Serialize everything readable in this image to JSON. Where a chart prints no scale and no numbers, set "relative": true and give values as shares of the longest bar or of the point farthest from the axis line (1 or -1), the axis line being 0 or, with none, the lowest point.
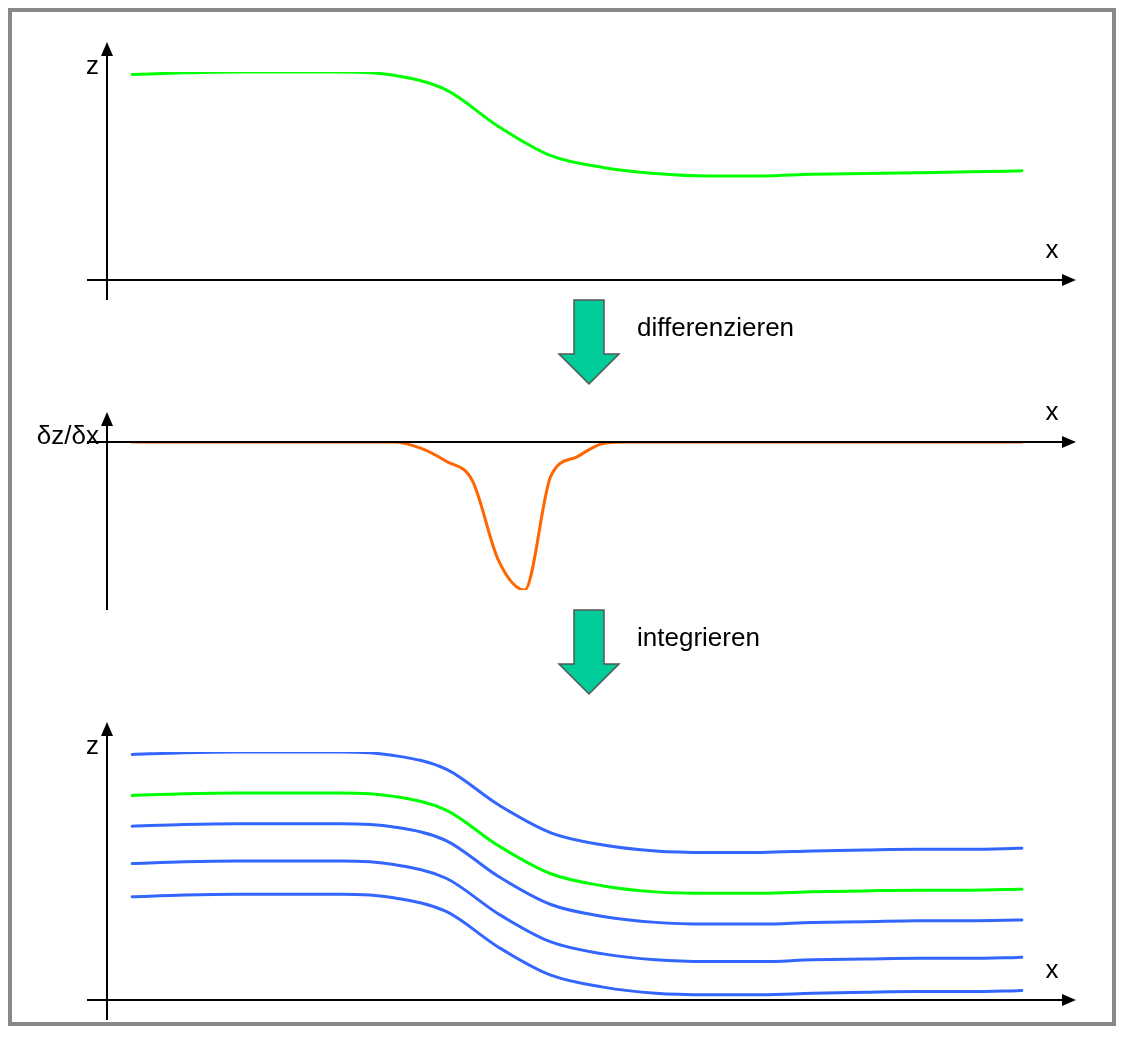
{
  "chart_data": [
    {
      "type": "line",
      "relative": true,
      "xlabel": "x",
      "ylabel": "z",
      "legend": false,
      "marker": "none",
      "annotations": [
        "differenzieren"
      ],
      "categories": [
        null,
        null,
        null,
        null,
        null,
        null,
        null,
        null,
        null,
        null,
        null,
        null,
        null,
        null,
        null,
        null,
        null,
        null
      ],
      "series": [
        {
          "color": "#00ff00",
          "values": [
            0.988,
            0.996,
            1,
            1,
            1,
            0.984,
            0.914,
            0.738,
            0.598,
            0.541,
            0.512,
            0.5,
            0.5,
            0.508,
            0.512,
            0.516,
            0.52,
            0.525
          ]
        }
      ]
    },
    {
      "type": "line",
      "relative": true,
      "xlabel": "x",
      "ylabel": "δz/δx",
      "legend": false,
      "marker": "none",
      "annotations": [
        "integrieren"
      ],
      "categories": [
        null,
        null,
        null,
        null,
        null,
        null,
        null,
        null,
        null,
        null,
        null,
        null,
        null,
        null,
        null,
        null,
        null,
        null,
        null,
        null,
        null,
        null,
        null,
        null,
        null,
        null,
        null,
        null,
        null,
        null,
        null,
        null,
        null,
        null,
        null
      ],
      "series": [
        {
          "color": "#ff6600",
          "values": [
            0,
            0,
            0,
            0,
            0,
            0,
            0,
            0,
            0,
            0,
            0,
            -0.04,
            -0.13,
            -0.26,
            -0.8,
            -1,
            -0.23,
            -0.1,
            -0.01,
            0,
            0,
            0,
            0,
            0,
            0,
            0,
            0,
            0,
            0,
            0,
            0,
            0,
            0,
            0,
            0
          ]
        }
      ]
    },
    {
      "type": "line",
      "relative": true,
      "xlabel": "x",
      "ylabel": "z",
      "legend": false,
      "marker": "none",
      "categories": [
        null,
        null,
        null,
        null,
        null,
        null,
        null,
        null,
        null,
        null,
        null,
        null,
        null,
        null,
        null,
        null,
        null,
        null
      ],
      "series": [
        {
          "color": "#3366ff",
          "values": [
            0.99,
            0.997,
            1,
            1,
            1,
            0.986,
            0.931,
            0.787,
            0.674,
            0.625,
            0.601,
            0.595,
            0.595,
            0.601,
            0.605,
            0.608,
            0.608,
            0.612
          ]
        },
        {
          "color": "#00ff00",
          "values": [
            0.825,
            0.832,
            0.835,
            0.835,
            0.835,
            0.821,
            0.766,
            0.622,
            0.509,
            0.46,
            0.436,
            0.43,
            0.43,
            0.436,
            0.44,
            0.443,
            0.443,
            0.447
          ]
        },
        {
          "color": "#3366ff",
          "values": [
            0.701,
            0.708,
            0.711,
            0.711,
            0.711,
            0.698,
            0.643,
            0.498,
            0.385,
            0.337,
            0.313,
            0.306,
            0.306,
            0.313,
            0.316,
            0.32,
            0.32,
            0.323
          ]
        },
        {
          "color": "#3366ff",
          "values": [
            0.55,
            0.557,
            0.56,
            0.56,
            0.56,
            0.546,
            0.491,
            0.347,
            0.234,
            0.186,
            0.162,
            0.155,
            0.155,
            0.162,
            0.165,
            0.168,
            0.168,
            0.172
          ]
        },
        {
          "color": "#3366ff",
          "values": [
            0.416,
            0.423,
            0.426,
            0.426,
            0.426,
            0.412,
            0.357,
            0.213,
            0.1,
            0.052,
            0.027,
            0.021,
            0.021,
            0.027,
            0.031,
            0.034,
            0.034,
            0.038
          ]
        }
      ]
    }
  ]
}
